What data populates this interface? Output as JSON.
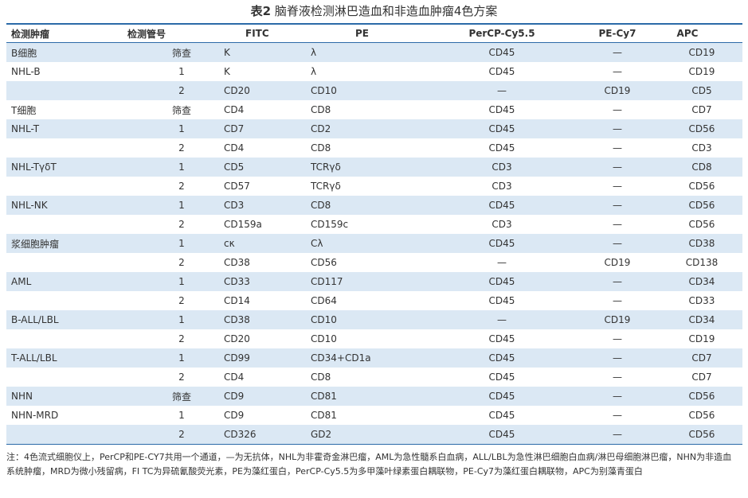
{
  "title": {
    "bold": "表2",
    "text": "脑脊液检测淋巴造血和非造血肿瘤4色方案"
  },
  "headers": [
    "检测肿瘤",
    "检测管号",
    "FITC",
    "PE",
    "PerCP-Cy5.5",
    "PE-Cy7",
    "APC"
  ],
  "rows": [
    [
      "B细胞",
      "筛查",
      "K",
      "λ",
      "CD45",
      "—",
      "CD19"
    ],
    [
      "NHL-B",
      "1",
      "K",
      "λ",
      "CD45",
      "—",
      "CD19"
    ],
    [
      "",
      "2",
      "CD20",
      "CD10",
      "—",
      "CD19",
      "CD5"
    ],
    [
      "T细胞",
      "筛查",
      "CD4",
      "CD8",
      "CD45",
      "—",
      "CD7"
    ],
    [
      "NHL-T",
      "1",
      "CD7",
      "CD2",
      "CD45",
      "—",
      "CD56"
    ],
    [
      "",
      "2",
      "CD4",
      "CD8",
      "CD45",
      "—",
      "CD3"
    ],
    [
      "NHL-TγδT",
      "1",
      "CD5",
      "TCRγδ",
      "CD3",
      "—",
      "CD8"
    ],
    [
      "",
      "2",
      "CD57",
      "TCRγδ",
      "CD3",
      "—",
      "CD56"
    ],
    [
      "NHL-NK",
      "1",
      "CD3",
      "CD8",
      "CD45",
      "—",
      "CD56"
    ],
    [
      "",
      "2",
      "CD159a",
      "CD159c",
      "CD3",
      "—",
      "CD56"
    ],
    [
      "浆细胞肿瘤",
      "1",
      "cκ",
      "Cλ",
      "CD45",
      "—",
      "CD38"
    ],
    [
      "",
      "2",
      "CD38",
      "CD56",
      "—",
      "CD19",
      "CD138"
    ],
    [
      "AML",
      "1",
      "CD33",
      "CD117",
      "CD45",
      "—",
      "CD34"
    ],
    [
      "",
      "2",
      "CD14",
      "CD64",
      "CD45",
      "—",
      "CD33"
    ],
    [
      "B-ALL/LBL",
      "1",
      "CD38",
      "CD10",
      "—",
      "CD19",
      "CD34"
    ],
    [
      "",
      "2",
      "CD20",
      "CD10",
      "CD45",
      "—",
      "CD19"
    ],
    [
      "T-ALL/LBL",
      "1",
      "CD99",
      "CD34+CD1a",
      "CD45",
      "—",
      "CD7"
    ],
    [
      "",
      "2",
      "CD4",
      "CD8",
      "CD45",
      "—",
      "CD7"
    ],
    [
      "NHN",
      "筛查",
      "CD9",
      "CD81",
      "CD45",
      "—",
      "CD56"
    ],
    [
      "NHN-MRD",
      "1",
      "CD9",
      "CD81",
      "CD45",
      "—",
      "CD56"
    ],
    [
      "",
      "2",
      "CD326",
      "GD2",
      "CD45",
      "—",
      "CD56"
    ]
  ],
  "note": "注：4色流式细胞仪上，PerCP和PE-CY7共用一个通道，—为无抗体，NHL为非霍奇金淋巴瘤，AML为急性髓系白血病，ALL/LBL为急性淋巴细胞白血病/淋巴母细胞淋巴瘤，NHN为非造血系统肿瘤，MRD为微小残留病，FI TC为异硫氰酸荧光素，PE为藻红蛋白，PerCP-Cy5.5为多甲藻叶绿素蛋白耦联物，PE-Cy7为藻红蛋白耦联物，APC为别藻青蛋白"
}
